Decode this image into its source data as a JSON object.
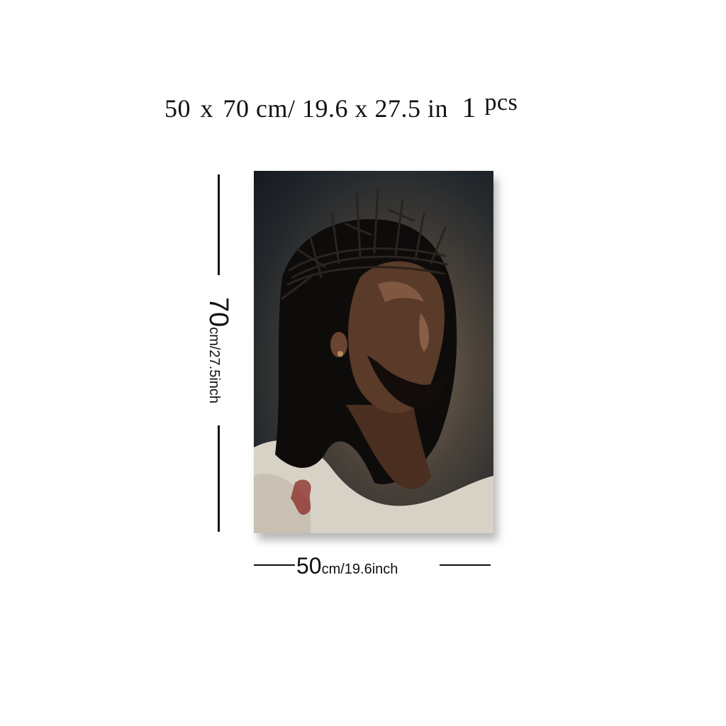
{
  "title": {
    "width": "50",
    "x": "x",
    "height": "70",
    "rest": "cm/ 19.6 x 27.5 in",
    "pcs_number": "1",
    "pcs_unit": "pcs"
  },
  "dimensions": {
    "height_value": "70",
    "height_unit": "cm/27.5inch",
    "width_value": "50",
    "width_unit": "cm/19.6inch"
  },
  "artwork": {
    "subject": "portrait-painting",
    "colors": {
      "background_dark": "#161a1e",
      "background_warm": "#7b6b5a",
      "skin": "#5a3a28",
      "hair": "#0e0c0b",
      "robe": "#d8d2c6",
      "accent_red": "#8a2a24"
    }
  }
}
